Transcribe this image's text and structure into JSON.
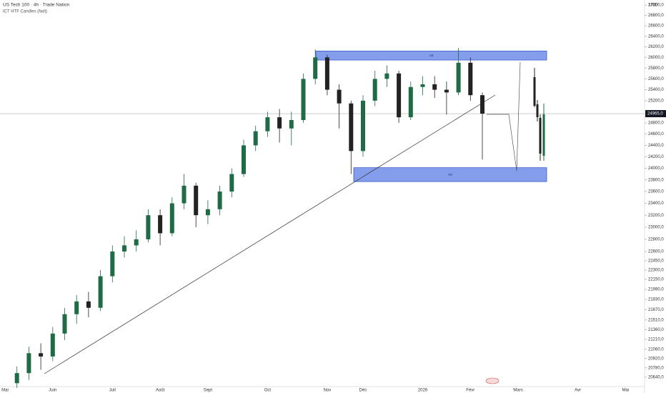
{
  "chart_data": {
    "type": "candlestick",
    "title": "US Tech 100 · 4h · Trade Nation",
    "subtitle": "ICT HTF Candles (fadi)",
    "y_unit": "USD",
    "log_scale": true,
    "up_color": "#1e6b45",
    "down_color": "#222222",
    "ylim": [
      20500,
      27100
    ],
    "yticks": [
      {
        "value": 27000,
        "label": "27000,0"
      },
      {
        "value": 26800,
        "label": "26800,0"
      },
      {
        "value": 26600,
        "label": "26600,0"
      },
      {
        "value": 26400,
        "label": "26400,0"
      },
      {
        "value": 26200,
        "label": "26200,0"
      },
      {
        "value": 26000,
        "label": "26000,0"
      },
      {
        "value": 25800,
        "label": "25800,0"
      },
      {
        "value": 25600,
        "label": "25600,0"
      },
      {
        "value": 25400,
        "label": "25400,0"
      },
      {
        "value": 25200,
        "label": "25200,0"
      },
      {
        "value": 24800,
        "label": "24800,0"
      },
      {
        "value": 24600,
        "label": "24600,0"
      },
      {
        "value": 24400,
        "label": "24400,0"
      },
      {
        "value": 24200,
        "label": "24200,0"
      },
      {
        "value": 24000,
        "label": "24000,0"
      },
      {
        "value": 23800,
        "label": "23800,0"
      },
      {
        "value": 23600,
        "label": "23600,0"
      },
      {
        "value": 23400,
        "label": "23400,0"
      },
      {
        "value": 23200,
        "label": "23200,0"
      },
      {
        "value": 23000,
        "label": "23000,0"
      },
      {
        "value": 22800,
        "label": "22800,0"
      },
      {
        "value": 22600,
        "label": "22600,0"
      },
      {
        "value": 22450,
        "label": "22450,0"
      },
      {
        "value": 22300,
        "label": "22300,0"
      },
      {
        "value": 22150,
        "label": "22150,0"
      },
      {
        "value": 21990,
        "label": "21990,0"
      },
      {
        "value": 21830,
        "label": "21830,0"
      },
      {
        "value": 21670,
        "label": "21670,0"
      },
      {
        "value": 21510,
        "label": "21510,0"
      },
      {
        "value": 21360,
        "label": "21360,0"
      },
      {
        "value": 21210,
        "label": "21210,0"
      },
      {
        "value": 21060,
        "label": "21060,0"
      },
      {
        "value": 20920,
        "label": "20920,0"
      },
      {
        "value": 20780,
        "label": "20780,0"
      },
      {
        "value": 20640,
        "label": "20640,0"
      }
    ],
    "last_price": {
      "value": 24965,
      "label": "24965,0"
    },
    "categories": [
      "Mai",
      null,
      null,
      null,
      "Juin",
      null,
      null,
      null,
      null,
      "Juil",
      null,
      null,
      null,
      "Août",
      null,
      null,
      null,
      "Sept",
      null,
      null,
      null,
      null,
      "Oct",
      null,
      null,
      null,
      null,
      "Nov",
      null,
      null,
      "Déc",
      null,
      null,
      null,
      null,
      "2026",
      null,
      null,
      null,
      "Févr",
      null,
      null,
      null,
      "Mars",
      null,
      null,
      null,
      null,
      "Avr",
      null,
      null,
      null,
      "Mai"
    ],
    "open": [
      null,
      20550,
      20700,
      21000,
      20950,
      21300,
      21600,
      21800,
      21700,
      22200,
      22600,
      22700,
      22800,
      23200,
      22900,
      23400,
      23700,
      23200,
      23300,
      23600,
      23900,
      24400,
      24650,
      24900,
      24700,
      24850,
      25600,
      26000,
      25400,
      25150,
      24300,
      25200,
      25600,
      25700,
      24900,
      25450,
      25500,
      25400,
      25350,
      25900,
      25300,
      null,
      null,
      null,
      null,
      null,
      null,
      null,
      null,
      null,
      null,
      null,
      null
    ],
    "high": [
      null,
      20800,
      21100,
      21150,
      21400,
      21700,
      21900,
      21950,
      22300,
      22700,
      22850,
      22950,
      23300,
      23300,
      23500,
      23900,
      23750,
      23450,
      23700,
      24000,
      24500,
      24750,
      25000,
      25050,
      25000,
      25700,
      26150,
      26050,
      25500,
      25200,
      25300,
      25750,
      25850,
      25750,
      25550,
      25650,
      25650,
      25550,
      26180,
      26000,
      25350,
      null,
      null,
      null,
      null,
      null,
      null,
      null,
      null,
      null,
      null,
      null,
      null
    ],
    "low": [
      null,
      20480,
      20600,
      20750,
      20880,
      21200,
      21450,
      21550,
      21650,
      22100,
      22500,
      22600,
      22750,
      22700,
      22850,
      23300,
      23000,
      23050,
      23200,
      23500,
      23850,
      24300,
      24550,
      24450,
      24400,
      24800,
      25500,
      25300,
      24700,
      23900,
      24200,
      25100,
      25450,
      24800,
      24850,
      25300,
      25250,
      24950,
      25300,
      25200,
      24150,
      null,
      null,
      null,
      null,
      null,
      null,
      null,
      null,
      null,
      null,
      null,
      null
    ],
    "close": [
      null,
      20700,
      21000,
      20950,
      21300,
      21600,
      21800,
      21700,
      22200,
      22600,
      22700,
      22800,
      23200,
      22900,
      23400,
      23700,
      23200,
      23300,
      23600,
      23900,
      24400,
      24650,
      24900,
      24700,
      24850,
      25600,
      26000,
      25400,
      25150,
      24300,
      25200,
      25600,
      25700,
      24900,
      25450,
      25500,
      25400,
      25350,
      25900,
      25300,
      24965,
      null,
      null,
      null,
      null,
      null,
      null,
      null,
      null,
      null,
      null,
      null,
      null
    ],
    "zones": [
      {
        "label": "OB",
        "top": 26120,
        "bottom": 25950,
        "color": "#5b7ee5"
      },
      {
        "label": "OB",
        "top": 24010,
        "bottom": 23770,
        "color": "#5b7ee5"
      }
    ]
  }
}
